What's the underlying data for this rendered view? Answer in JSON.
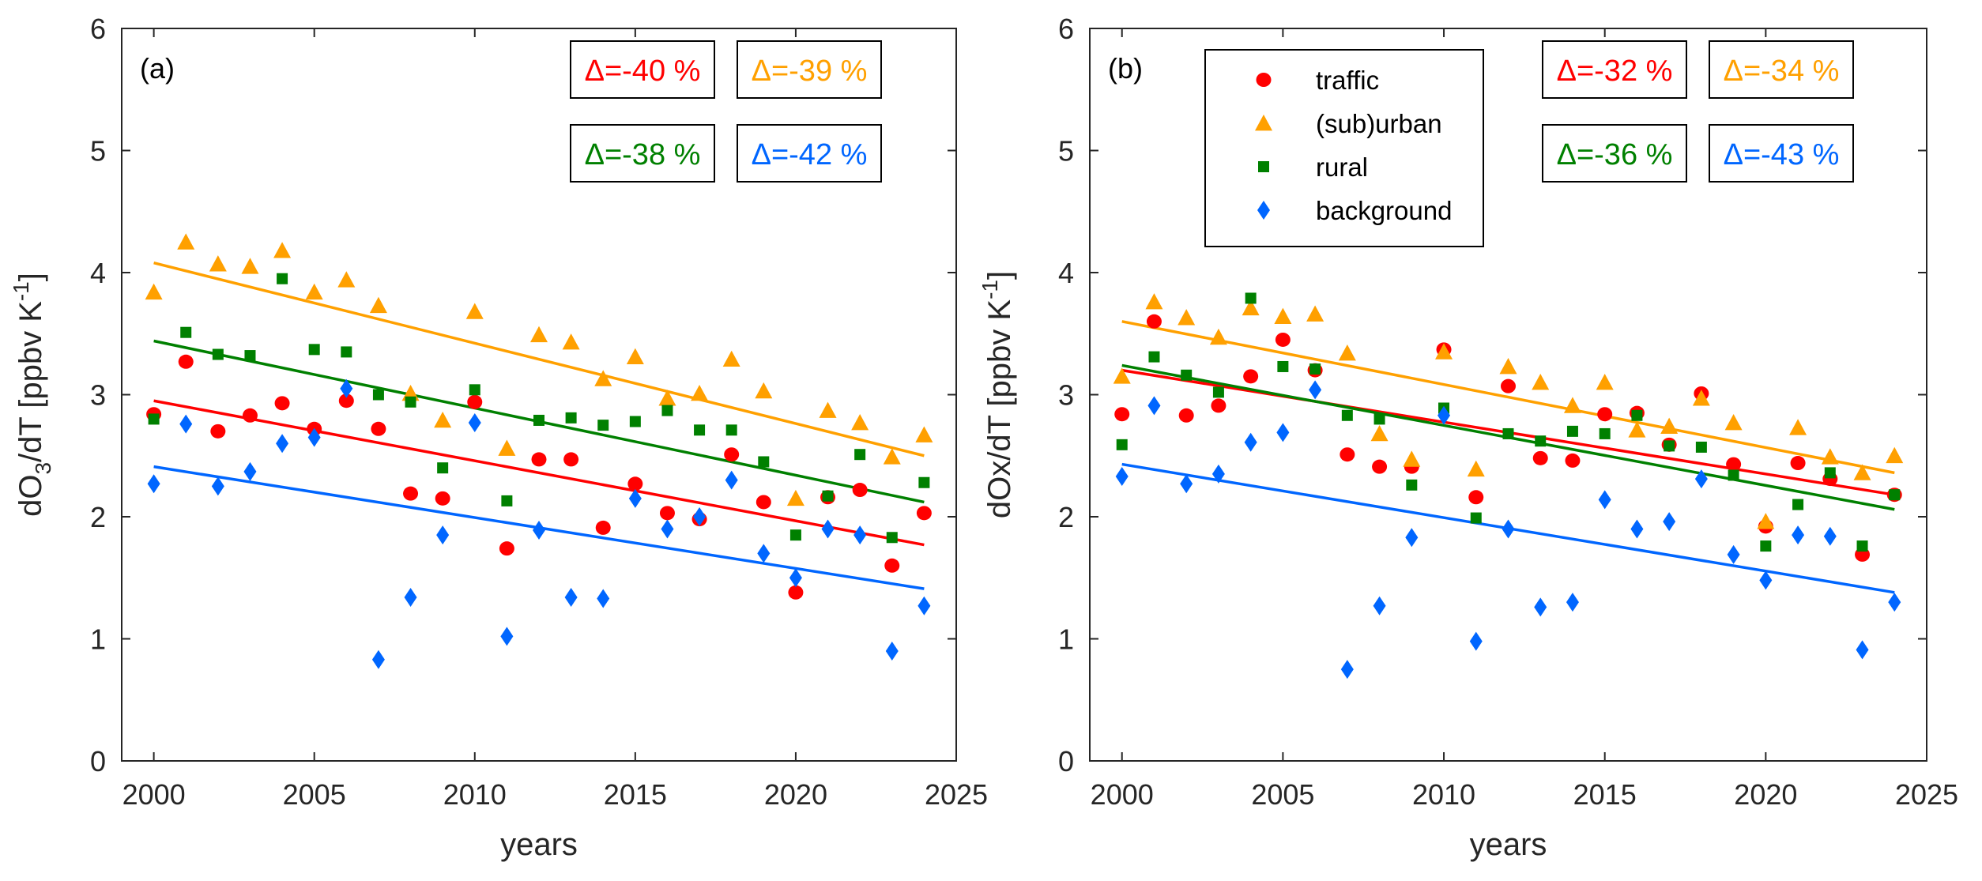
{
  "colors": {
    "traffic": "#ff0000",
    "suburban": "#ffa000",
    "rural": "#008000",
    "background": "#0066ff",
    "axis": "#262626"
  },
  "chart_data": [
    {
      "type": "scatter",
      "panel_label": "(a)",
      "xlabel": "years",
      "ylabel_parts": {
        "prefix": "dO",
        "sub": "3",
        "middle": "/dT [ppbv K",
        "sup": "-1",
        "suffix": "]"
      },
      "xlim": [
        1999,
        2025
      ],
      "ylim": [
        0,
        6
      ],
      "xticks": [
        2000,
        2005,
        2010,
        2015,
        2020,
        2025
      ],
      "yticks": [
        0,
        1,
        2,
        3,
        4,
        5,
        6
      ],
      "grid": false,
      "x": [
        2000,
        2001,
        2002,
        2003,
        2004,
        2005,
        2006,
        2007,
        2008,
        2009,
        2010,
        2011,
        2012,
        2013,
        2014,
        2015,
        2016,
        2017,
        2018,
        2019,
        2020,
        2021,
        2022,
        2023,
        2024
      ],
      "series": [
        {
          "name": "traffic",
          "marker": "circle",
          "values": [
            2.84,
            3.27,
            2.7,
            2.83,
            2.93,
            2.72,
            2.95,
            2.72,
            2.19,
            2.15,
            2.94,
            1.74,
            2.47,
            2.47,
            1.91,
            2.27,
            2.03,
            1.98,
            2.51,
            2.12,
            1.38,
            2.16,
            2.22,
            1.6,
            2.03
          ],
          "fit": [
            2.95,
            1.77
          ],
          "delta_label": "Δ=-40%"
        },
        {
          "name": "(sub)urban",
          "marker": "triangle",
          "values": [
            3.84,
            4.25,
            4.07,
            4.05,
            4.18,
            3.84,
            3.94,
            3.73,
            3.01,
            2.79,
            3.68,
            2.56,
            3.49,
            3.43,
            3.13,
            3.31,
            2.97,
            3.01,
            3.29,
            3.03,
            2.15,
            2.87,
            2.77,
            2.49,
            2.67
          ],
          "fit": [
            4.08,
            2.5
          ],
          "delta_label": "Δ=-39%"
        },
        {
          "name": "rural",
          "marker": "square",
          "values": [
            2.8,
            3.51,
            3.33,
            3.32,
            3.95,
            3.37,
            3.35,
            3.0,
            2.94,
            2.4,
            3.04,
            2.13,
            2.79,
            2.81,
            2.75,
            2.78,
            2.87,
            2.71,
            2.71,
            2.45,
            1.85,
            2.17,
            2.51,
            1.83,
            2.28
          ],
          "fit": [
            3.44,
            2.12
          ],
          "delta_label": "Δ=-38%"
        },
        {
          "name": "background",
          "marker": "diamond",
          "values": [
            2.27,
            2.76,
            2.25,
            2.37,
            2.6,
            2.65,
            3.05,
            0.83,
            1.34,
            1.85,
            2.77,
            1.02,
            1.89,
            1.34,
            1.33,
            2.15,
            1.9,
            2.0,
            2.3,
            1.7,
            1.5,
            1.9,
            1.85,
            0.9,
            1.27
          ],
          "fit": [
            2.41,
            1.41
          ],
          "delta_label": "Δ=-42%"
        }
      ],
      "legend": null
    },
    {
      "type": "scatter",
      "panel_label": "(b)",
      "xlabel": "years",
      "ylabel_parts": {
        "prefix": "dOx",
        "sub": "",
        "middle": "/dT [ppbv K",
        "sup": "-1",
        "suffix": "]"
      },
      "xlim": [
        1999,
        2025
      ],
      "ylim": [
        0,
        6
      ],
      "xticks": [
        2000,
        2005,
        2010,
        2015,
        2020,
        2025
      ],
      "yticks": [
        0,
        1,
        2,
        3,
        4,
        5,
        6
      ],
      "grid": false,
      "x": [
        2000,
        2001,
        2002,
        2003,
        2004,
        2005,
        2006,
        2007,
        2008,
        2009,
        2010,
        2011,
        2012,
        2013,
        2014,
        2015,
        2016,
        2017,
        2018,
        2019,
        2020,
        2021,
        2022,
        2023,
        2024
      ],
      "series": [
        {
          "name": "traffic",
          "marker": "circle",
          "values": [
            2.84,
            3.6,
            2.83,
            2.91,
            3.15,
            3.45,
            3.2,
            2.51,
            2.41,
            2.41,
            3.37,
            2.16,
            3.07,
            2.48,
            2.46,
            2.84,
            2.85,
            2.59,
            3.01,
            2.43,
            1.92,
            2.44,
            2.31,
            1.69,
            2.18
          ],
          "fit": [
            3.2,
            2.18
          ],
          "delta_label": "Δ=-32%"
        },
        {
          "name": "(sub)urban",
          "marker": "triangle",
          "values": [
            3.15,
            3.76,
            3.63,
            3.47,
            3.71,
            3.64,
            3.66,
            3.34,
            2.68,
            2.47,
            3.35,
            2.39,
            3.23,
            3.1,
            2.91,
            3.1,
            2.71,
            2.74,
            2.97,
            2.77,
            1.96,
            2.73,
            2.49,
            2.36,
            2.5
          ],
          "fit": [
            3.6,
            2.36
          ],
          "delta_label": "Δ=-34%"
        },
        {
          "name": "rural",
          "marker": "square",
          "values": [
            2.59,
            3.31,
            3.16,
            3.02,
            3.79,
            3.23,
            3.21,
            2.83,
            2.8,
            2.26,
            2.89,
            1.99,
            2.68,
            2.62,
            2.7,
            2.68,
            2.83,
            2.58,
            2.57,
            2.34,
            1.76,
            2.1,
            2.36,
            1.76,
            2.18
          ],
          "fit": [
            3.24,
            2.06
          ],
          "delta_label": "Δ=-36%"
        },
        {
          "name": "background",
          "marker": "diamond",
          "values": [
            2.33,
            2.91,
            2.27,
            2.35,
            2.61,
            2.69,
            3.04,
            0.75,
            1.27,
            1.83,
            2.83,
            0.98,
            1.9,
            1.26,
            1.3,
            2.14,
            1.9,
            1.96,
            2.31,
            1.69,
            1.48,
            1.85,
            1.84,
            0.91,
            1.3
          ],
          "fit": [
            2.43,
            1.38
          ],
          "delta_label": "Δ=-43%"
        }
      ],
      "legend": {
        "placement": "top-left",
        "entries": [
          "traffic",
          "(sub)urban",
          "rural",
          "background"
        ]
      }
    }
  ]
}
